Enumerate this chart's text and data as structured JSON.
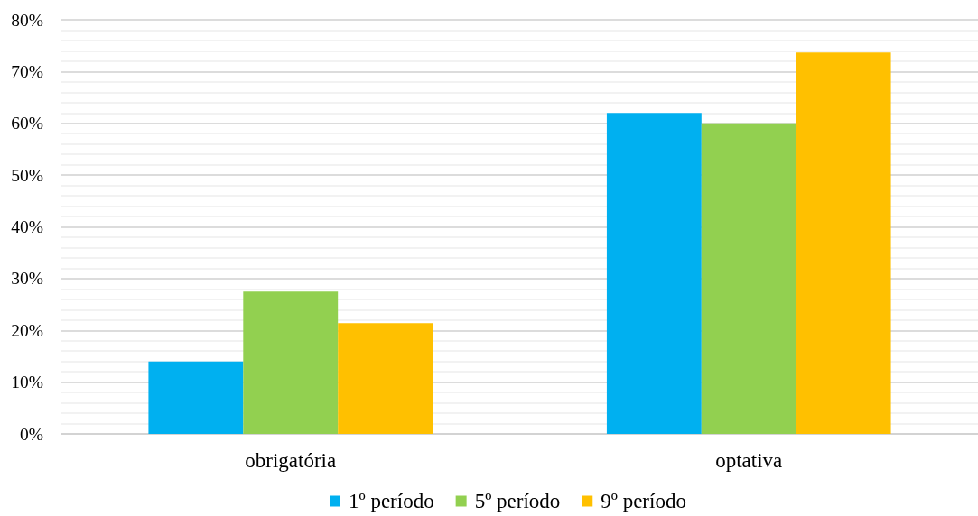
{
  "chart_data": {
    "type": "bar",
    "categories": [
      "obrigatória",
      "optativa"
    ],
    "series": [
      {
        "name": "1º período",
        "color": "#00b0f0",
        "values": [
          14,
          62
        ]
      },
      {
        "name": "5º período",
        "color": "#92d050",
        "values": [
          27.5,
          60
        ]
      },
      {
        "name": "9º período",
        "color": "#ffc000",
        "values": [
          21.4,
          73.7
        ]
      }
    ],
    "ylim": [
      0,
      80
    ],
    "yticks": [
      {
        "value": 0,
        "label": "0%"
      },
      {
        "value": 10,
        "label": "10%"
      },
      {
        "value": 20,
        "label": "20%"
      },
      {
        "value": 30,
        "label": "30%"
      },
      {
        "value": 40,
        "label": "40%"
      },
      {
        "value": 50,
        "label": "50%"
      },
      {
        "value": 60,
        "label": "60%"
      },
      {
        "value": 70,
        "label": "70%"
      },
      {
        "value": 80,
        "label": "80%"
      }
    ],
    "grid": "y",
    "legend": "bottom"
  }
}
